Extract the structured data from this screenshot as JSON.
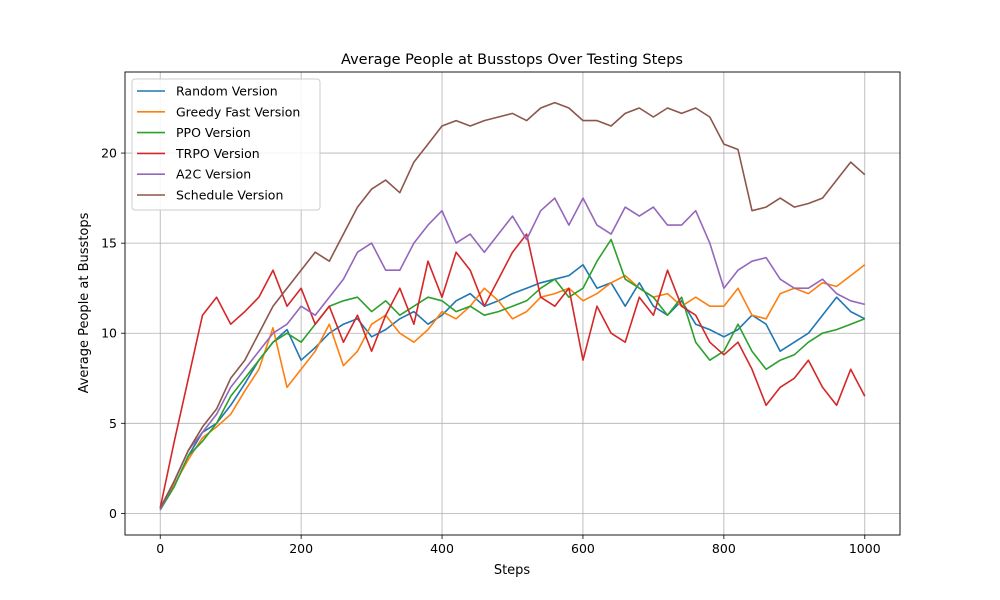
{
  "chart_data": {
    "type": "line",
    "title": "Average People at Busstops Over Testing Steps",
    "xlabel": "Steps",
    "ylabel": "Average People at Busstops",
    "xlim": [
      -50,
      1050
    ],
    "ylim": [
      -1.2,
      24.5
    ],
    "xticks": [
      0,
      200,
      400,
      600,
      800,
      1000
    ],
    "yticks": [
      0,
      5,
      10,
      15,
      20
    ],
    "grid": true,
    "legend_position": "top-left",
    "series": [
      {
        "name": "Random Version",
        "color": "#1f77b4",
        "x": [
          0,
          20,
          40,
          60,
          80,
          100,
          120,
          140,
          160,
          180,
          200,
          220,
          240,
          260,
          280,
          300,
          320,
          340,
          360,
          380,
          400,
          420,
          440,
          460,
          480,
          500,
          520,
          540,
          560,
          580,
          600,
          620,
          640,
          660,
          680,
          700,
          720,
          740,
          760,
          780,
          800,
          820,
          840,
          860,
          880,
          900,
          920,
          940,
          960,
          980,
          1000
        ],
        "y": [
          0.2,
          1.5,
          3.2,
          4.5,
          5.0,
          6.0,
          7.2,
          8.5,
          9.5,
          10.2,
          8.5,
          9.2,
          10.0,
          10.5,
          10.8,
          9.8,
          10.2,
          10.8,
          11.2,
          10.5,
          11.0,
          11.8,
          12.2,
          11.5,
          11.8,
          12.2,
          12.5,
          12.8,
          13.0,
          13.2,
          13.8,
          12.5,
          12.8,
          11.5,
          12.8,
          11.5,
          11.0,
          11.8,
          10.5,
          10.2,
          9.8,
          10.2,
          11.0,
          10.5,
          9.0,
          9.5,
          10.0,
          11.0,
          12.0,
          11.2,
          10.8
        ]
      },
      {
        "name": "Greedy Fast Version",
        "color": "#ff7f0e",
        "x": [
          0,
          20,
          40,
          60,
          80,
          100,
          120,
          140,
          160,
          180,
          200,
          220,
          240,
          260,
          280,
          300,
          320,
          340,
          360,
          380,
          400,
          420,
          440,
          460,
          480,
          500,
          520,
          540,
          560,
          580,
          600,
          620,
          640,
          660,
          680,
          700,
          720,
          740,
          760,
          780,
          800,
          820,
          840,
          860,
          880,
          900,
          920,
          940,
          960,
          980,
          1000
        ],
        "y": [
          0.2,
          1.6,
          3.0,
          4.2,
          4.8,
          5.5,
          6.8,
          8.0,
          10.3,
          7.0,
          8.0,
          9.0,
          10.5,
          8.2,
          9.0,
          10.5,
          11.0,
          10.0,
          9.5,
          10.2,
          11.2,
          10.8,
          11.5,
          12.5,
          11.8,
          10.8,
          11.2,
          12.0,
          12.2,
          12.5,
          11.8,
          12.2,
          12.8,
          13.2,
          12.5,
          12.0,
          12.2,
          11.5,
          12.0,
          11.5,
          11.5,
          12.5,
          11.0,
          10.8,
          12.2,
          12.5,
          12.2,
          12.8,
          12.6,
          13.2,
          13.8
        ]
      },
      {
        "name": "PPO Version",
        "color": "#2ca02c",
        "x": [
          0,
          20,
          40,
          60,
          80,
          100,
          120,
          140,
          160,
          180,
          200,
          220,
          240,
          260,
          280,
          300,
          320,
          340,
          360,
          380,
          400,
          420,
          440,
          460,
          480,
          500,
          520,
          540,
          560,
          580,
          600,
          620,
          640,
          660,
          680,
          700,
          720,
          740,
          760,
          780,
          800,
          820,
          840,
          860,
          880,
          900,
          920,
          940,
          960,
          980,
          1000
        ],
        "y": [
          0.2,
          1.5,
          3.2,
          4.0,
          5.0,
          6.5,
          7.5,
          8.5,
          9.5,
          10.0,
          9.5,
          10.5,
          11.5,
          11.8,
          12.0,
          11.2,
          11.8,
          11.0,
          11.5,
          12.0,
          11.8,
          11.2,
          11.5,
          11.0,
          11.2,
          11.5,
          11.8,
          12.5,
          13.0,
          12.0,
          12.5,
          14.0,
          15.2,
          13.0,
          12.5,
          12.0,
          11.0,
          12.0,
          9.5,
          8.5,
          9.0,
          10.5,
          9.0,
          8.0,
          8.5,
          8.8,
          9.5,
          10.0,
          10.2,
          10.5,
          10.8
        ]
      },
      {
        "name": "TRPO Version",
        "color": "#d62728",
        "x": [
          0,
          20,
          40,
          60,
          80,
          100,
          120,
          140,
          160,
          180,
          200,
          220,
          240,
          260,
          280,
          300,
          320,
          340,
          360,
          380,
          400,
          420,
          440,
          460,
          480,
          500,
          520,
          540,
          560,
          580,
          600,
          620,
          640,
          660,
          680,
          700,
          720,
          740,
          760,
          780,
          800,
          820,
          840,
          860,
          880,
          900,
          920,
          940,
          960,
          980,
          1000
        ],
        "y": [
          0.3,
          4.0,
          7.5,
          11.0,
          12.0,
          10.5,
          11.2,
          12.0,
          13.5,
          11.5,
          12.5,
          10.5,
          11.5,
          9.5,
          11.0,
          9.0,
          11.0,
          12.5,
          10.5,
          14.0,
          12.0,
          14.5,
          13.5,
          11.5,
          13.0,
          14.5,
          15.5,
          12.0,
          11.5,
          12.5,
          8.5,
          11.5,
          10.0,
          9.5,
          12.0,
          11.0,
          13.5,
          11.5,
          11.0,
          9.5,
          8.8,
          9.5,
          8.0,
          6.0,
          7.0,
          7.5,
          8.5,
          7.0,
          6.0,
          8.0,
          6.5
        ]
      },
      {
        "name": "A2C Version",
        "color": "#9467bd",
        "x": [
          0,
          20,
          40,
          60,
          80,
          100,
          120,
          140,
          160,
          180,
          200,
          220,
          240,
          260,
          280,
          300,
          320,
          340,
          360,
          380,
          400,
          420,
          440,
          460,
          480,
          500,
          520,
          540,
          560,
          580,
          600,
          620,
          640,
          660,
          680,
          700,
          720,
          740,
          760,
          780,
          800,
          820,
          840,
          860,
          880,
          900,
          920,
          940,
          960,
          980,
          1000
        ],
        "y": [
          0.2,
          1.8,
          3.5,
          4.5,
          5.5,
          7.0,
          8.0,
          9.0,
          10.0,
          10.5,
          11.5,
          11.0,
          12.0,
          13.0,
          14.5,
          15.0,
          13.5,
          13.5,
          15.0,
          16.0,
          16.8,
          15.0,
          15.5,
          14.5,
          15.5,
          16.5,
          15.2,
          16.8,
          17.5,
          16.0,
          17.5,
          16.0,
          15.5,
          17.0,
          16.5,
          17.0,
          16.0,
          16.0,
          16.8,
          15.0,
          12.5,
          13.5,
          14.0,
          14.2,
          13.0,
          12.5,
          12.5,
          13.0,
          12.2,
          11.8,
          11.6
        ]
      },
      {
        "name": "Schedule Version",
        "color": "#8c564b",
        "x": [
          0,
          20,
          40,
          60,
          80,
          100,
          120,
          140,
          160,
          180,
          200,
          220,
          240,
          260,
          280,
          300,
          320,
          340,
          360,
          380,
          400,
          420,
          440,
          460,
          480,
          500,
          520,
          540,
          560,
          580,
          600,
          620,
          640,
          660,
          680,
          700,
          720,
          740,
          760,
          780,
          800,
          820,
          840,
          860,
          880,
          900,
          920,
          940,
          960,
          980,
          1000
        ],
        "y": [
          0.3,
          1.8,
          3.5,
          4.8,
          5.8,
          7.5,
          8.5,
          10.0,
          11.5,
          12.5,
          13.5,
          14.5,
          14.0,
          15.5,
          17.0,
          18.0,
          18.5,
          17.8,
          19.5,
          20.5,
          21.5,
          21.8,
          21.5,
          21.8,
          22.0,
          22.2,
          21.8,
          22.5,
          22.8,
          22.5,
          21.8,
          21.8,
          21.5,
          22.2,
          22.5,
          22.0,
          22.5,
          22.2,
          22.5,
          22.0,
          20.5,
          20.2,
          16.8,
          17.0,
          17.5,
          17.0,
          17.2,
          17.5,
          18.5,
          19.5,
          18.8
        ]
      }
    ]
  }
}
